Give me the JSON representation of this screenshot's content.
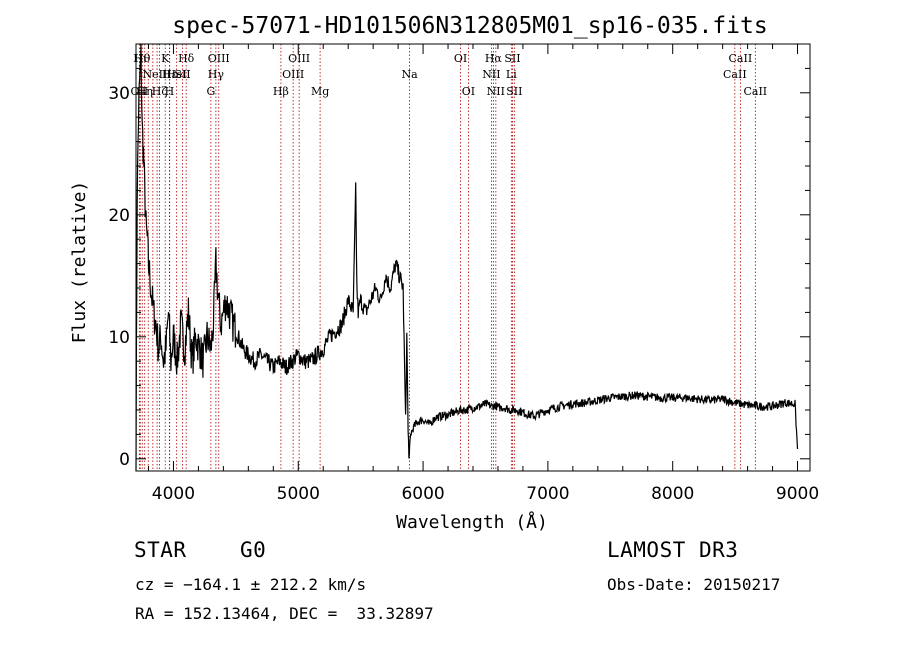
{
  "chart_data": {
    "type": "line",
    "title": "spec-57071-HD101506N312805M01_sp16-035.fits",
    "xlabel": "Wavelength (Å)",
    "ylabel": "Flux (relative)",
    "xlim": [
      3700,
      9100
    ],
    "ylim": [
      -1,
      34
    ],
    "x_ticks": [
      4000,
      5000,
      6000,
      7000,
      8000,
      9000
    ],
    "y_ticks": [
      0,
      10,
      20,
      30
    ],
    "x_minor_step": 200,
    "y_minor_step": 2,
    "grid": false,
    "line_color": "#000000",
    "marker_line_color": "#b00000",
    "series": [
      {
        "x": [
          3700,
          3710,
          3720,
          3730,
          3740,
          3750,
          3760,
          3770,
          3780,
          3790,
          3800,
          3820,
          3840,
          3860,
          3880,
          3900,
          3920,
          3940,
          3960,
          3980,
          4000,
          4030,
          4060,
          4090,
          4120,
          4150,
          4180,
          4210,
          4240,
          4270,
          4300,
          4320,
          4340,
          4360,
          4380,
          4400,
          4420,
          4450,
          4480,
          4520,
          4560,
          4600,
          4650,
          4700,
          4750,
          4800,
          4850,
          4900,
          4950,
          5000,
          5050,
          5100,
          5150,
          5200,
          5250,
          5300,
          5350,
          5400,
          5440,
          5460,
          5470,
          5480,
          5500,
          5540,
          5580,
          5620,
          5660,
          5700,
          5740,
          5780,
          5810,
          5840,
          5860,
          5870,
          5880,
          5890,
          5895,
          5900,
          5920,
          5950,
          6000,
          6050,
          6100,
          6150,
          6200,
          6250,
          6300,
          6350,
          6400,
          6450,
          6500,
          6550,
          6580,
          6600,
          6650,
          6700,
          6750,
          6800,
          6850,
          6900,
          6950,
          7000,
          7100,
          7200,
          7300,
          7400,
          7500,
          7600,
          7700,
          7800,
          7900,
          8000,
          8100,
          8200,
          8300,
          8400,
          8500,
          8600,
          8700,
          8800,
          8900,
          8980,
          9000
        ],
        "y": [
          0,
          22,
          28,
          31,
          33,
          27,
          25,
          22,
          19,
          18,
          16,
          14,
          12,
          11,
          9,
          10,
          8,
          9,
          12,
          8,
          10,
          8,
          11,
          9,
          12,
          8,
          10,
          9,
          8,
          10,
          9,
          11,
          16,
          13,
          11,
          12,
          13,
          12,
          11,
          10,
          9,
          8.5,
          8,
          8.5,
          8,
          7.5,
          8,
          7.5,
          8,
          8.5,
          8,
          8,
          8.5,
          9,
          10,
          10.5,
          11,
          13,
          12,
          22,
          14,
          12,
          13,
          12,
          13,
          14,
          13,
          15,
          14,
          16,
          15,
          14,
          3,
          10,
          2,
          0,
          1,
          2,
          2.5,
          3,
          3.2,
          2.8,
          3.4,
          3.5,
          3.6,
          3.8,
          4,
          4,
          4.2,
          4.3,
          4.5,
          4.3,
          4.4,
          4.2,
          4.2,
          4,
          4,
          3.8,
          3.6,
          3.5,
          3.8,
          4,
          4.3,
          4.5,
          4.6,
          4.8,
          5,
          5.1,
          5.2,
          5.1,
          5,
          5,
          5,
          4.9,
          4.8,
          4.9,
          4.6,
          4.4,
          4.3,
          4.3,
          4.6,
          4.5,
          0.8
        ]
      }
    ],
    "line_markers": [
      {
        "x": 3727,
        "label": "OII",
        "row": 3
      },
      {
        "x": 3734,
        "label": "Hι",
        "row": 1
      },
      {
        "x": 3750,
        "label": "Hθ",
        "row": 1
      },
      {
        "x": 3770,
        "label": "Hη",
        "row": 3
      },
      {
        "x": 3798,
        "label": "",
        "row": 0
      },
      {
        "x": 3835,
        "label": "",
        "row": 0
      },
      {
        "x": 3869,
        "label": "NeIII",
        "row": 2
      },
      {
        "x": 3889,
        "label": "Hζ",
        "row": 3
      },
      {
        "x": 3934,
        "label": "K",
        "row": 1
      },
      {
        "x": 3968,
        "label": "H",
        "row": 3
      },
      {
        "x": 3970,
        "label": "Hε",
        "row": 2
      },
      {
        "x": 4026,
        "label": "HeI",
        "row": 2
      },
      {
        "x": 4072,
        "label": "SII",
        "row": 2
      },
      {
        "x": 4102,
        "label": "Hδ",
        "row": 1
      },
      {
        "x": 4300,
        "label": "G",
        "row": 3
      },
      {
        "x": 4340,
        "label": "Hγ",
        "row": 2
      },
      {
        "x": 4363,
        "label": "OIII",
        "row": 1
      },
      {
        "x": 4861,
        "label": "Hβ",
        "row": 3
      },
      {
        "x": 4959,
        "label": "OIII",
        "row": 2
      },
      {
        "x": 5007,
        "label": "OIII",
        "row": 1
      },
      {
        "x": 5175,
        "label": "Mg",
        "row": 3
      },
      {
        "x": 5892,
        "label": "Na",
        "row": 2
      },
      {
        "x": 6300,
        "label": "OI",
        "row": 1
      },
      {
        "x": 6363,
        "label": "OI",
        "row": 3
      },
      {
        "x": 6548,
        "label": "NII",
        "row": 2
      },
      {
        "x": 6563,
        "label": "Hα",
        "row": 1
      },
      {
        "x": 6583,
        "label": "NII",
        "row": 3
      },
      {
        "x": 6707,
        "label": "Li",
        "row": 2
      },
      {
        "x": 6716,
        "label": "SII",
        "row": 1
      },
      {
        "x": 6731,
        "label": "SII",
        "row": 3
      },
      {
        "x": 8498,
        "label": "CaII",
        "row": 2
      },
      {
        "x": 8542,
        "label": "CaII",
        "row": 1
      },
      {
        "x": 8662,
        "label": "CaII",
        "row": 3
      }
    ]
  },
  "footer": {
    "object_class": "STAR",
    "subclass": "G0",
    "survey": "LAMOST DR3",
    "redshift_line": "cz = −164.1 ± 212.2 km/s",
    "obs_date": "Obs-Date: 20150217",
    "coords_line": "RA = 152.13464, DEC =  33.32897"
  }
}
